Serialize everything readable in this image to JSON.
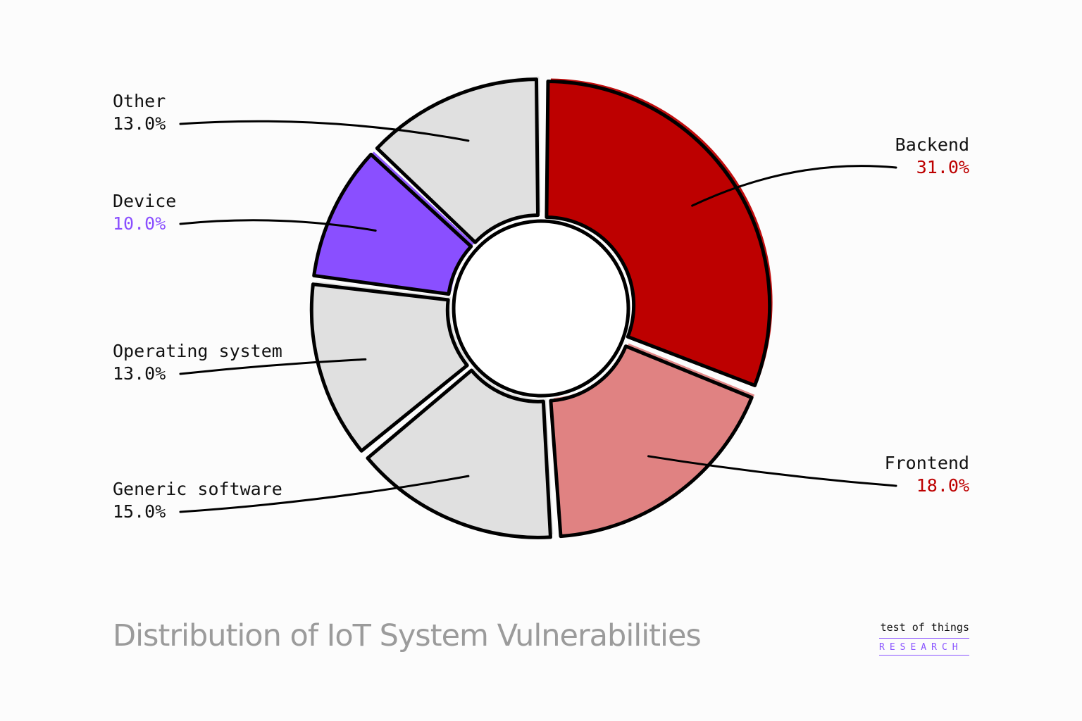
{
  "chart_data": {
    "type": "pie",
    "title": "Distribution of IoT System Vulnerabilities",
    "slices": [
      {
        "label": "Backend",
        "value": 31.0,
        "display": "31.0%",
        "color": "#bd0000",
        "label_color": "#bd0000"
      },
      {
        "label": "Frontend",
        "value": 18.0,
        "display": "18.0%",
        "color": "#e08282",
        "label_color": "#bd0000"
      },
      {
        "label": "Generic software",
        "value": 15.0,
        "display": "15.0%",
        "color": "#e0e0e0",
        "label_color": "#111111"
      },
      {
        "label": "Operating system",
        "value": 13.0,
        "display": "13.0%",
        "color": "#e0e0e0",
        "label_color": "#111111"
      },
      {
        "label": "Device",
        "value": 10.0,
        "display": "10.0%",
        "color": "#8a4fff",
        "label_color": "#8a4fff"
      },
      {
        "label": "Other",
        "value": 13.0,
        "display": "13.0%",
        "color": "#e0e0e0",
        "label_color": "#111111"
      }
    ],
    "start": "top",
    "direction": "clockwise",
    "donut": true,
    "legend": "none"
  },
  "branding": {
    "line1": "test of things",
    "line2": "RESEARCH"
  },
  "colors": {
    "background": "#fcfcfc",
    "outline": "#000000",
    "title": "#9b9b9b",
    "accent": "#8a55ff"
  }
}
